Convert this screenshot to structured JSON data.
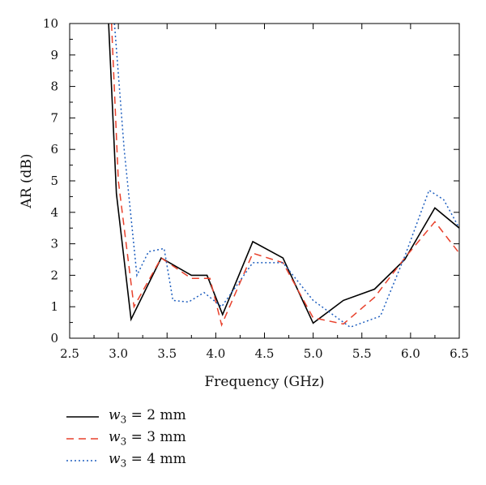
{
  "chart_data": {
    "type": "line",
    "xlabel": "Frequency (GHz)",
    "ylabel": "AR (dB)",
    "xlim": [
      2.5,
      6.5
    ],
    "ylim": [
      0,
      10
    ],
    "xticks": [
      "2.5",
      "3.0",
      "3.5",
      "4.0",
      "4.5",
      "5.0",
      "5.5",
      "6.0",
      "6.5"
    ],
    "yticks": [
      "0",
      "1",
      "2",
      "3",
      "4",
      "5",
      "6",
      "7",
      "8",
      "9",
      "10"
    ],
    "grid": false,
    "legend_position": "bottom-left",
    "series": [
      {
        "name": "w3 = 2 mm",
        "legend": {
          "var": "w",
          "sub": "3",
          "rest": " = 2 mm"
        },
        "color": "#000000",
        "style": "solid",
        "x": [
          2.9,
          2.98,
          3.13,
          3.44,
          3.75,
          3.91,
          4.07,
          4.38,
          4.69,
          5.0,
          5.31,
          5.63,
          5.94,
          6.25,
          6.5
        ],
        "y": [
          10.0,
          4.6,
          0.6,
          2.55,
          2.0,
          2.0,
          0.75,
          3.07,
          2.55,
          0.48,
          1.2,
          1.56,
          2.5,
          4.14,
          3.5
        ]
      },
      {
        "name": "w3 = 3 mm",
        "legend": {
          "var": "w",
          "sub": "3",
          "rest": " = 3 mm"
        },
        "color": "#e8412c",
        "style": "dashed",
        "x": [
          2.93,
          3.0,
          3.16,
          3.44,
          3.75,
          3.94,
          4.06,
          4.38,
          4.69,
          5.0,
          5.31,
          5.63,
          5.94,
          6.25,
          6.5
        ],
        "y": [
          10.0,
          5.0,
          1.0,
          2.55,
          1.9,
          1.9,
          0.42,
          2.7,
          2.4,
          0.65,
          0.45,
          1.3,
          2.55,
          3.7,
          2.7
        ]
      },
      {
        "name": "w3 = 4 mm",
        "legend": {
          "var": "w",
          "sub": "3",
          "rest": " = 4 mm"
        },
        "color": "#1f5fbf",
        "style": "dotted",
        "x": [
          2.96,
          3.06,
          3.19,
          3.31,
          3.47,
          3.56,
          3.72,
          3.88,
          4.06,
          4.38,
          4.69,
          5.0,
          5.38,
          5.69,
          5.94,
          6.19,
          6.34,
          6.5
        ],
        "y": [
          10.0,
          6.0,
          2.0,
          2.75,
          2.85,
          1.2,
          1.15,
          1.45,
          1.0,
          2.4,
          2.4,
          1.2,
          0.35,
          0.7,
          2.6,
          4.7,
          4.4,
          3.5
        ]
      }
    ]
  }
}
